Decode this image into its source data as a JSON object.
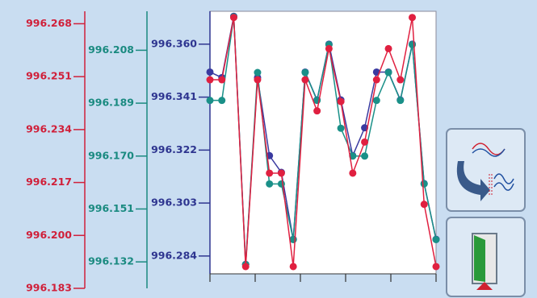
{
  "chart_data": {
    "type": "line",
    "ylim": [
      996.183,
      996.272
    ],
    "yticks": [
      996.268,
      996.251,
      996.234,
      996.217,
      {
        "value": 996.2,
        "label": "996.200"
      },
      996.183
    ],
    "y2lim": [
      996.1225,
      996.222
    ],
    "y2ticks": [
      996.208,
      996.189,
      {
        "value": 996.17,
        "label": "996.170"
      },
      996.151,
      996.132
    ],
    "y3lim": [
      996.2724,
      996.3718
    ],
    "y3ticks": [
      {
        "value": 996.36,
        "label": "996.360"
      },
      996.341,
      996.322,
      996.303,
      996.284
    ],
    "axis_colors": {
      "y": "#d0203a",
      "y2": "#1a8a80",
      "y3": "#2e3590"
    },
    "xlim": [
      0,
      19
    ],
    "xticks": [
      0,
      3.8,
      7.6,
      11.4,
      15.2,
      19
    ],
    "series": [
      {
        "color": "#3a3aa0",
        "axis": "y3",
        "values": [
          996.35,
          996.348,
          996.37,
          996.281,
          996.348,
          996.32,
          996.314,
          996.29,
          996.35,
          996.34,
          996.36,
          996.34,
          996.32,
          996.33,
          996.35,
          996.35,
          996.34,
          996.36,
          996.31,
          996.29
        ]
      },
      {
        "color": "#1a9088",
        "axis": "y2",
        "values": [
          996.19,
          996.19,
          996.22,
          996.131,
          996.2,
          996.16,
          996.16,
          996.14,
          996.2,
          996.19,
          996.21,
          996.18,
          996.17,
          996.17,
          996.19,
          996.2,
          996.19,
          996.21,
          996.16,
          996.14
        ]
      },
      {
        "color": "#e02040",
        "axis": "y",
        "values": [
          996.25,
          996.25,
          996.27,
          996.19,
          996.25,
          996.22,
          996.22,
          996.19,
          996.25,
          996.24,
          996.26,
          996.243,
          996.22,
          996.23,
          996.25,
          996.26,
          996.25,
          996.27,
          996.21,
          996.19
        ]
      }
    ]
  }
}
